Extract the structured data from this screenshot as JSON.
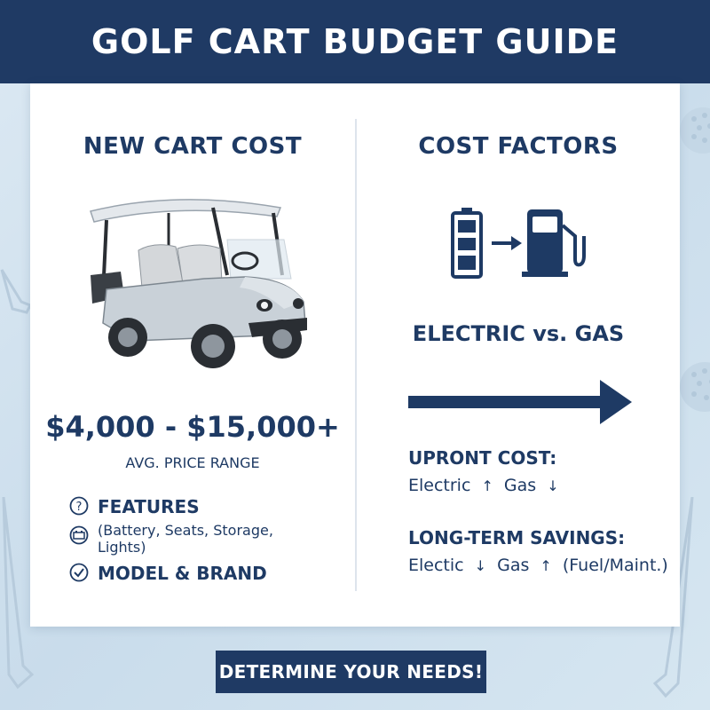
{
  "header": {
    "title": "GOLF CART BUDGET GUIDE"
  },
  "left": {
    "title": "NEW CART COST",
    "price": "$4,000 - $15,000+",
    "price_sub": "AVG. PRICE RANGE",
    "features": [
      {
        "icon": "question-circle-icon",
        "label": "FEATURES"
      },
      {
        "icon": "battery-badge-icon",
        "label": "(Battery, Seats, Storage,\nLights)"
      },
      {
        "icon": "check-circle-icon",
        "label": "MODEL & BRAND"
      }
    ]
  },
  "right": {
    "title": "COST FACTORS",
    "factor_icons": [
      "battery-icon",
      "arrow-right-icon",
      "gas-pump-icon"
    ],
    "comparison": "ELECTRIC vs. GAS",
    "upfront": {
      "heading": "UPRONT COST:",
      "electric": "Electric",
      "electric_arrow": "↑",
      "gas": "Gas",
      "gas_arrow": "↓"
    },
    "longterm": {
      "heading": "LONG-TERM SAVINGS:",
      "electric": "Electic",
      "electric_arrow": "↓",
      "gas": "Gas",
      "gas_arrow": "↑",
      "note": "(Fuel/Maint.)"
    }
  },
  "cta": {
    "label": "DETERMINE YOUR NEEDS!"
  },
  "colors": {
    "navy": "#1f3a64",
    "background": "#d6e6f1",
    "card": "#ffffff"
  }
}
